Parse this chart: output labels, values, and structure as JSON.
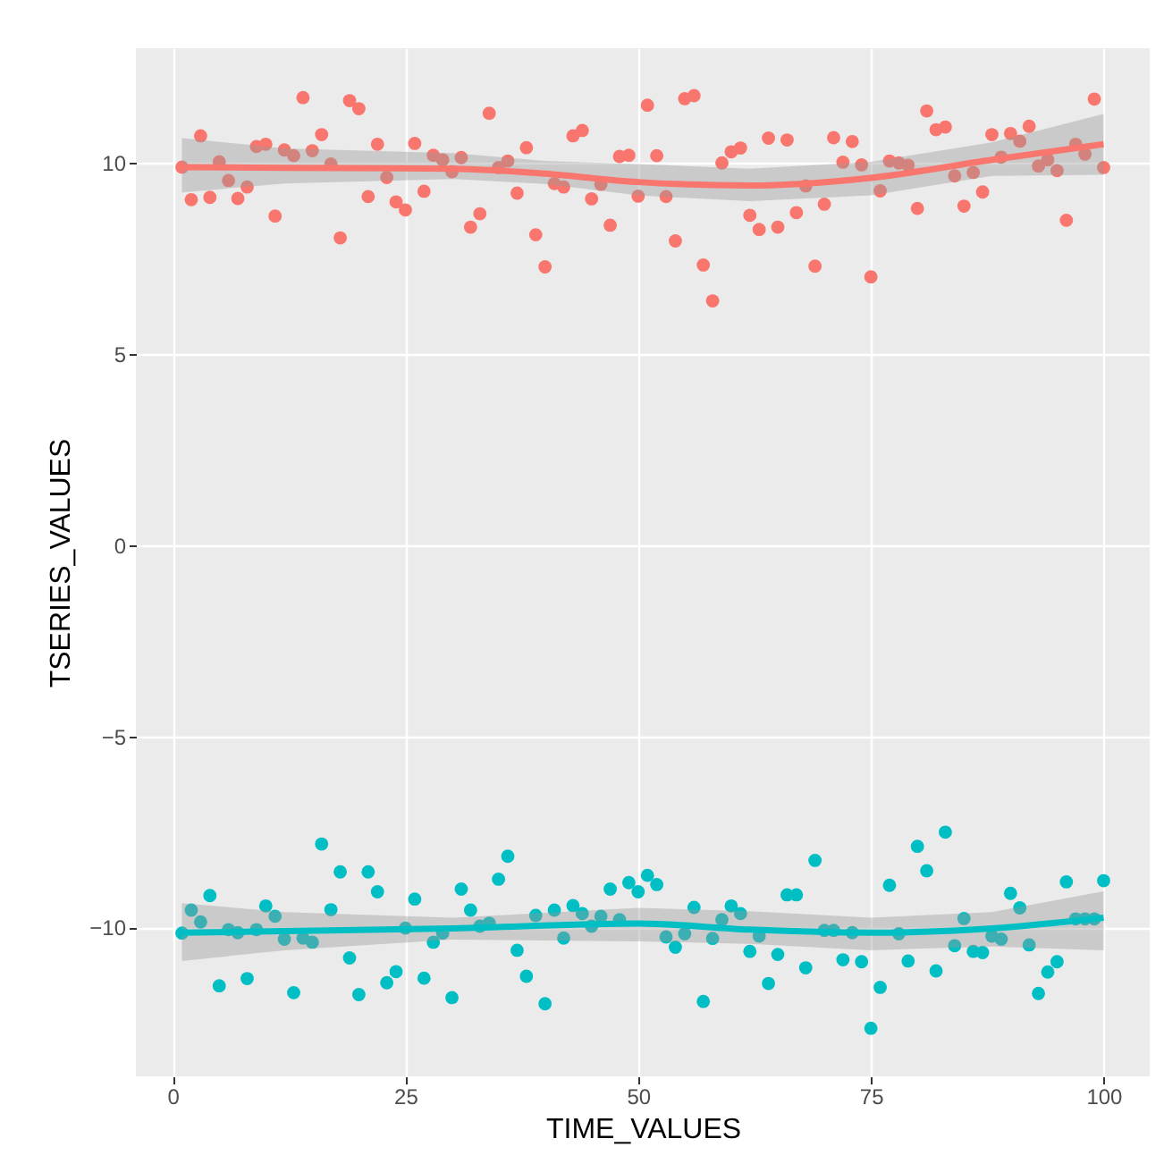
{
  "chart_data": {
    "type": "scatter",
    "xlabel": "TIME_VALUES",
    "ylabel": "TSERIES_VALUES",
    "xlim": [
      -3.95,
      104.95
    ],
    "ylim": [
      -13.9,
      13
    ],
    "xticks": [
      0,
      25,
      50,
      75,
      100
    ],
    "yticks": [
      -10,
      -5,
      0,
      5,
      10
    ],
    "grid": true,
    "marker": "circle",
    "x": [
      1,
      2,
      3,
      4,
      5,
      6,
      7,
      8,
      9,
      10,
      11,
      12,
      13,
      14,
      15,
      16,
      17,
      18,
      19,
      20,
      21,
      22,
      23,
      24,
      25,
      26,
      27,
      28,
      29,
      30,
      31,
      32,
      33,
      34,
      35,
      36,
      37,
      38,
      39,
      40,
      41,
      42,
      43,
      44,
      45,
      46,
      47,
      48,
      49,
      50,
      51,
      52,
      53,
      54,
      55,
      56,
      57,
      58,
      59,
      60,
      61,
      62,
      63,
      64,
      65,
      66,
      67,
      68,
      69,
      70,
      71,
      72,
      73,
      74,
      75,
      76,
      77,
      78,
      79,
      80,
      81,
      82,
      83,
      84,
      85,
      86,
      87,
      88,
      89,
      90,
      91,
      92,
      93,
      94,
      95,
      96,
      97,
      98,
      99,
      100
    ],
    "series": [
      {
        "color": "#f8766d",
        "values": [
          9.89,
          9.04,
          10.71,
          9.1,
          10.03,
          9.54,
          9.07,
          9.37,
          10.43,
          10.49,
          8.61,
          10.34,
          10.19,
          11.71,
          10.32,
          10.74,
          9.97,
          8.04,
          11.63,
          11.42,
          9.12,
          10.49,
          9.62,
          8.98,
          8.77,
          10.51,
          9.26,
          10.2,
          10.08,
          9.77,
          10.14,
          8.32,
          8.67,
          11.3,
          9.88,
          10.05,
          9.21,
          10.4,
          8.12,
          7.28,
          9.46,
          9.37,
          10.71,
          10.85,
          9.06,
          9.44,
          8.37,
          10.17,
          10.2,
          9.13,
          11.51,
          10.19,
          9.12,
          7.96,
          11.68,
          11.76,
          7.33,
          6.39,
          10.0,
          10.29,
          10.39,
          8.63,
          8.26,
          10.65,
          8.32,
          10.6,
          8.7,
          9.4,
          7.3,
          8.92,
          10.66,
          10.02,
          10.56,
          9.95,
          7.02,
          9.27,
          10.05,
          10.0,
          9.94,
          8.81,
          11.36,
          10.87,
          10.94,
          9.66,
          8.87,
          9.75,
          9.24,
          10.74,
          10.15,
          10.77,
          10.57,
          10.96,
          9.92,
          10.08,
          9.8,
          8.5,
          10.49,
          10.23,
          11.67,
          9.88
        ]
      },
      {
        "color": "#00bfc4",
        "values": [
          -10.15,
          -9.55,
          -9.86,
          -9.17,
          -11.53,
          -10.06,
          -10.14,
          -11.34,
          -10.06,
          -9.44,
          -9.71,
          -10.31,
          -11.71,
          -10.28,
          -10.39,
          -7.82,
          -9.54,
          -8.55,
          -10.8,
          -11.76,
          -8.55,
          -9.07,
          -11.45,
          -11.16,
          -10.02,
          -9.26,
          -11.33,
          -10.39,
          -10.15,
          -11.84,
          -9.0,
          -9.55,
          -9.97,
          -9.89,
          -8.74,
          -8.14,
          -10.6,
          -11.28,
          -9.69,
          -12.0,
          -9.55,
          -10.28,
          -9.43,
          -9.64,
          -9.97,
          -9.71,
          -9.0,
          -9.8,
          -8.83,
          -9.07,
          -8.64,
          -8.88,
          -10.25,
          -10.52,
          -10.17,
          -9.48,
          -11.94,
          -10.29,
          -9.8,
          -9.44,
          -9.64,
          -10.63,
          -10.23,
          -11.47,
          -10.71,
          -9.15,
          -9.15,
          -11.06,
          -8.25,
          -10.08,
          -10.08,
          -10.85,
          -10.14,
          -10.9,
          -12.64,
          -11.57,
          -8.9,
          -10.17,
          -10.88,
          -7.88,
          -8.52,
          -11.14,
          -7.51,
          -10.48,
          -9.77,
          -10.63,
          -10.66,
          -10.23,
          -10.31,
          -9.11,
          -9.49,
          -10.46,
          -11.73,
          -11.17,
          -10.9,
          -8.81,
          -9.78,
          -9.78,
          -9.78,
          -8.78
        ]
      },
      {
        "type": "line",
        "marker": "none",
        "color": "#f8766d",
        "x": [
          1,
          12,
          30,
          40,
          50,
          62,
          75,
          88,
          100
        ],
        "values": [
          9.89,
          9.87,
          9.85,
          9.72,
          9.5,
          9.41,
          9.61,
          10.08,
          10.49
        ],
        "lower": [
          9.23,
          9.46,
          9.58,
          9.45,
          9.15,
          9.0,
          9.15,
          9.66,
          9.69
        ],
        "upper": [
          10.65,
          10.38,
          10.26,
          10.05,
          9.97,
          9.85,
          10.03,
          10.54,
          11.28
        ]
      },
      {
        "type": "line",
        "marker": "none",
        "color": "#00bfc4",
        "x": [
          1,
          12,
          30,
          50,
          62,
          75,
          88,
          100
        ],
        "values": [
          -10.14,
          -10.1,
          -10.03,
          -9.9,
          -10.06,
          -10.14,
          -10.03,
          -9.75
        ],
        "lower": [
          -10.88,
          -10.6,
          -10.32,
          -10.37,
          -10.43,
          -10.6,
          -10.5,
          -10.6
        ],
        "upper": [
          -9.37,
          -9.6,
          -9.75,
          -9.49,
          -9.58,
          -9.75,
          -9.6,
          -9.06
        ]
      }
    ]
  }
}
